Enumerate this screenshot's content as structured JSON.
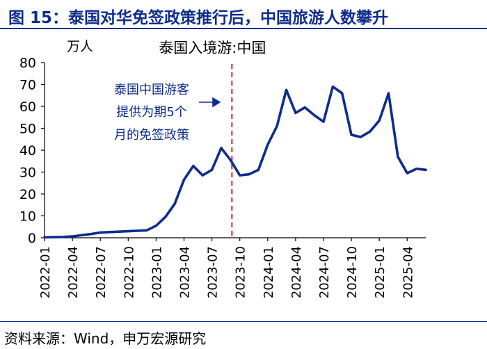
{
  "header": {
    "title": "图 15：泰国对华免签政策推行后，中国旅游人数攀升"
  },
  "footer": {
    "source": "资料来源：Wind，申万宏源研究"
  },
  "colors": {
    "line": "#0d2c8c",
    "marker": "#e03c3c",
    "text": "#0d2c8c"
  },
  "chart_data": {
    "type": "line",
    "title": "泰国入境游:中国",
    "ylabel": "万人",
    "ylim": [
      0,
      80
    ],
    "yticks": [
      0,
      10,
      20,
      30,
      40,
      50,
      60,
      70,
      80
    ],
    "grid": false,
    "x": [
      "2022-01",
      "2022-02",
      "2022-03",
      "2022-04",
      "2022-05",
      "2022-06",
      "2022-07",
      "2022-08",
      "2022-09",
      "2022-10",
      "2022-11",
      "2022-12",
      "2023-01",
      "2023-02",
      "2023-03",
      "2023-04",
      "2023-05",
      "2023-06",
      "2023-07",
      "2023-08",
      "2023-09",
      "2023-10",
      "2023-11",
      "2023-12",
      "2024-01",
      "2024-02",
      "2024-03",
      "2024-04",
      "2024-05",
      "2024-06",
      "2024-07",
      "2024-08",
      "2024-09",
      "2024-10",
      "2024-11",
      "2024-12",
      "2025-01",
      "2025-02",
      "2025-03",
      "2025-04",
      "2025-05",
      "2025-06"
    ],
    "xticks": [
      "2022-01",
      "2022-04",
      "2022-07",
      "2022-10",
      "2023-01",
      "2023-04",
      "2023-07",
      "2023-10",
      "2024-01",
      "2024-04",
      "2024-07",
      "2024-10",
      "2025-01",
      "2025-04"
    ],
    "series": [
      {
        "values": [
          0.2,
          0.3,
          0.4,
          0.6,
          1.2,
          1.7,
          2.4,
          2.6,
          2.8,
          3.0,
          3.2,
          3.4,
          5.5,
          9.5,
          15.5,
          26.5,
          32.8,
          28.5,
          31.0,
          41.0,
          35.5,
          28.5,
          29.0,
          31.0,
          42.5,
          51.0,
          67.5,
          57.0,
          59.5,
          56.0,
          53.0,
          69.0,
          66.0,
          47.0,
          46.0,
          48.5,
          53.5,
          66.0,
          37.0,
          29.5,
          31.5,
          31.0
        ]
      }
    ],
    "marker_line": {
      "x": "2023-09",
      "style": "dashed"
    },
    "annotation": {
      "lines": [
        "泰国中国游客",
        "提供为期5个",
        "月的免签政策"
      ],
      "arrow": "right"
    }
  }
}
